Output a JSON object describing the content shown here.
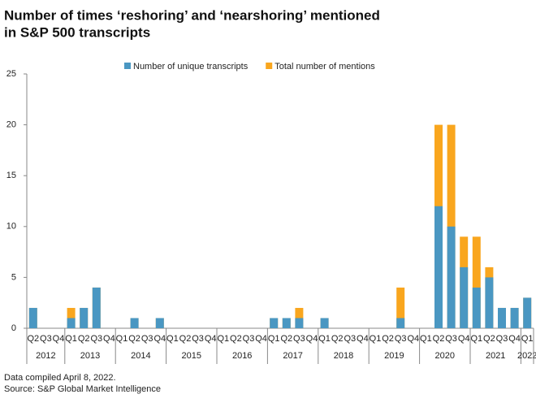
{
  "chart_data": {
    "type": "bar",
    "overlap": true,
    "title": [
      "Number of times ‘reshoring’ and ‘nearshoring’ mentioned",
      "in S&P 500 transcripts"
    ],
    "groups": [
      {
        "name": "2012",
        "categories": [
          "Q2",
          "Q3",
          "Q4"
        ]
      },
      {
        "name": "2013",
        "categories": [
          "Q1",
          "Q2",
          "Q3",
          "Q4"
        ]
      },
      {
        "name": "2014",
        "categories": [
          "Q1",
          "Q2",
          "Q3",
          "Q4"
        ]
      },
      {
        "name": "2015",
        "categories": [
          "Q1",
          "Q2",
          "Q3",
          "Q4"
        ]
      },
      {
        "name": "2016",
        "categories": [
          "Q1",
          "Q2",
          "Q3",
          "Q4"
        ]
      },
      {
        "name": "2017",
        "categories": [
          "Q1",
          "Q2",
          "Q3",
          "Q4"
        ]
      },
      {
        "name": "2018",
        "categories": [
          "Q1",
          "Q2",
          "Q3",
          "Q4"
        ]
      },
      {
        "name": "2019",
        "categories": [
          "Q1",
          "Q2",
          "Q3",
          "Q4"
        ]
      },
      {
        "name": "2020",
        "categories": [
          "Q1",
          "Q2",
          "Q3",
          "Q4"
        ]
      },
      {
        "name": "2021",
        "categories": [
          "Q1",
          "Q2",
          "Q3",
          "Q4"
        ]
      },
      {
        "name": "2022",
        "categories": [
          "Q1"
        ]
      }
    ],
    "series": [
      {
        "name": "Number of unique transcripts",
        "color": "#4a97c2",
        "values": [
          2,
          0,
          0,
          1,
          2,
          4,
          0,
          0,
          1,
          0,
          1,
          0,
          0,
          0,
          0,
          0,
          0,
          0,
          0,
          1,
          1,
          1,
          0,
          1,
          0,
          0,
          0,
          0,
          0,
          1,
          0,
          0,
          12,
          10,
          6,
          4,
          5,
          2,
          2,
          3
        ]
      },
      {
        "name": "Total number of mentions",
        "color": "#f9a61e",
        "values": [
          2,
          0,
          0,
          2,
          2,
          4,
          0,
          0,
          1,
          0,
          1,
          0,
          0,
          0,
          0,
          0,
          0,
          0,
          0,
          1,
          1,
          2,
          0,
          1,
          0,
          0,
          0,
          0,
          0,
          4,
          0,
          0,
          20,
          20,
          9,
          9,
          6,
          2,
          2,
          3
        ]
      }
    ],
    "ylim": [
      0,
      25
    ],
    "yticks": [
      0,
      5,
      10,
      15,
      20,
      25
    ],
    "grid": false,
    "notes": [
      "Data compiled April 8, 2022.",
      "Source: S&P Global Market Intelligence"
    ]
  }
}
